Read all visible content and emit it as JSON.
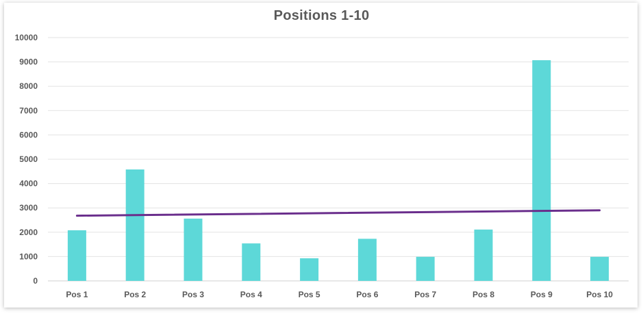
{
  "chart_data": {
    "type": "bar",
    "title": "Positions 1-10",
    "xlabel": "",
    "ylabel": "",
    "categories": [
      "Pos 1",
      "Pos 2",
      "Pos 3",
      "Pos 4",
      "Pos 5",
      "Pos 6",
      "Pos 7",
      "Pos 8",
      "Pos 9",
      "Pos 10"
    ],
    "values": [
      2080,
      4580,
      2560,
      1540,
      930,
      1730,
      990,
      2110,
      9070,
      990
    ],
    "ylim": [
      0,
      10000
    ],
    "yticks": [
      "0",
      "1000",
      "2000",
      "3000",
      "4000",
      "5000",
      "6000",
      "7000",
      "8000",
      "9000",
      "10000"
    ],
    "trendline": {
      "type": "linear",
      "start": 2680,
      "end": 2900
    },
    "grid": true,
    "legend": "none",
    "colors": {
      "bar": "#5dd8d8",
      "trendline": "#6a2e8c",
      "grid": "#e3e3e3",
      "text": "#595959"
    }
  }
}
